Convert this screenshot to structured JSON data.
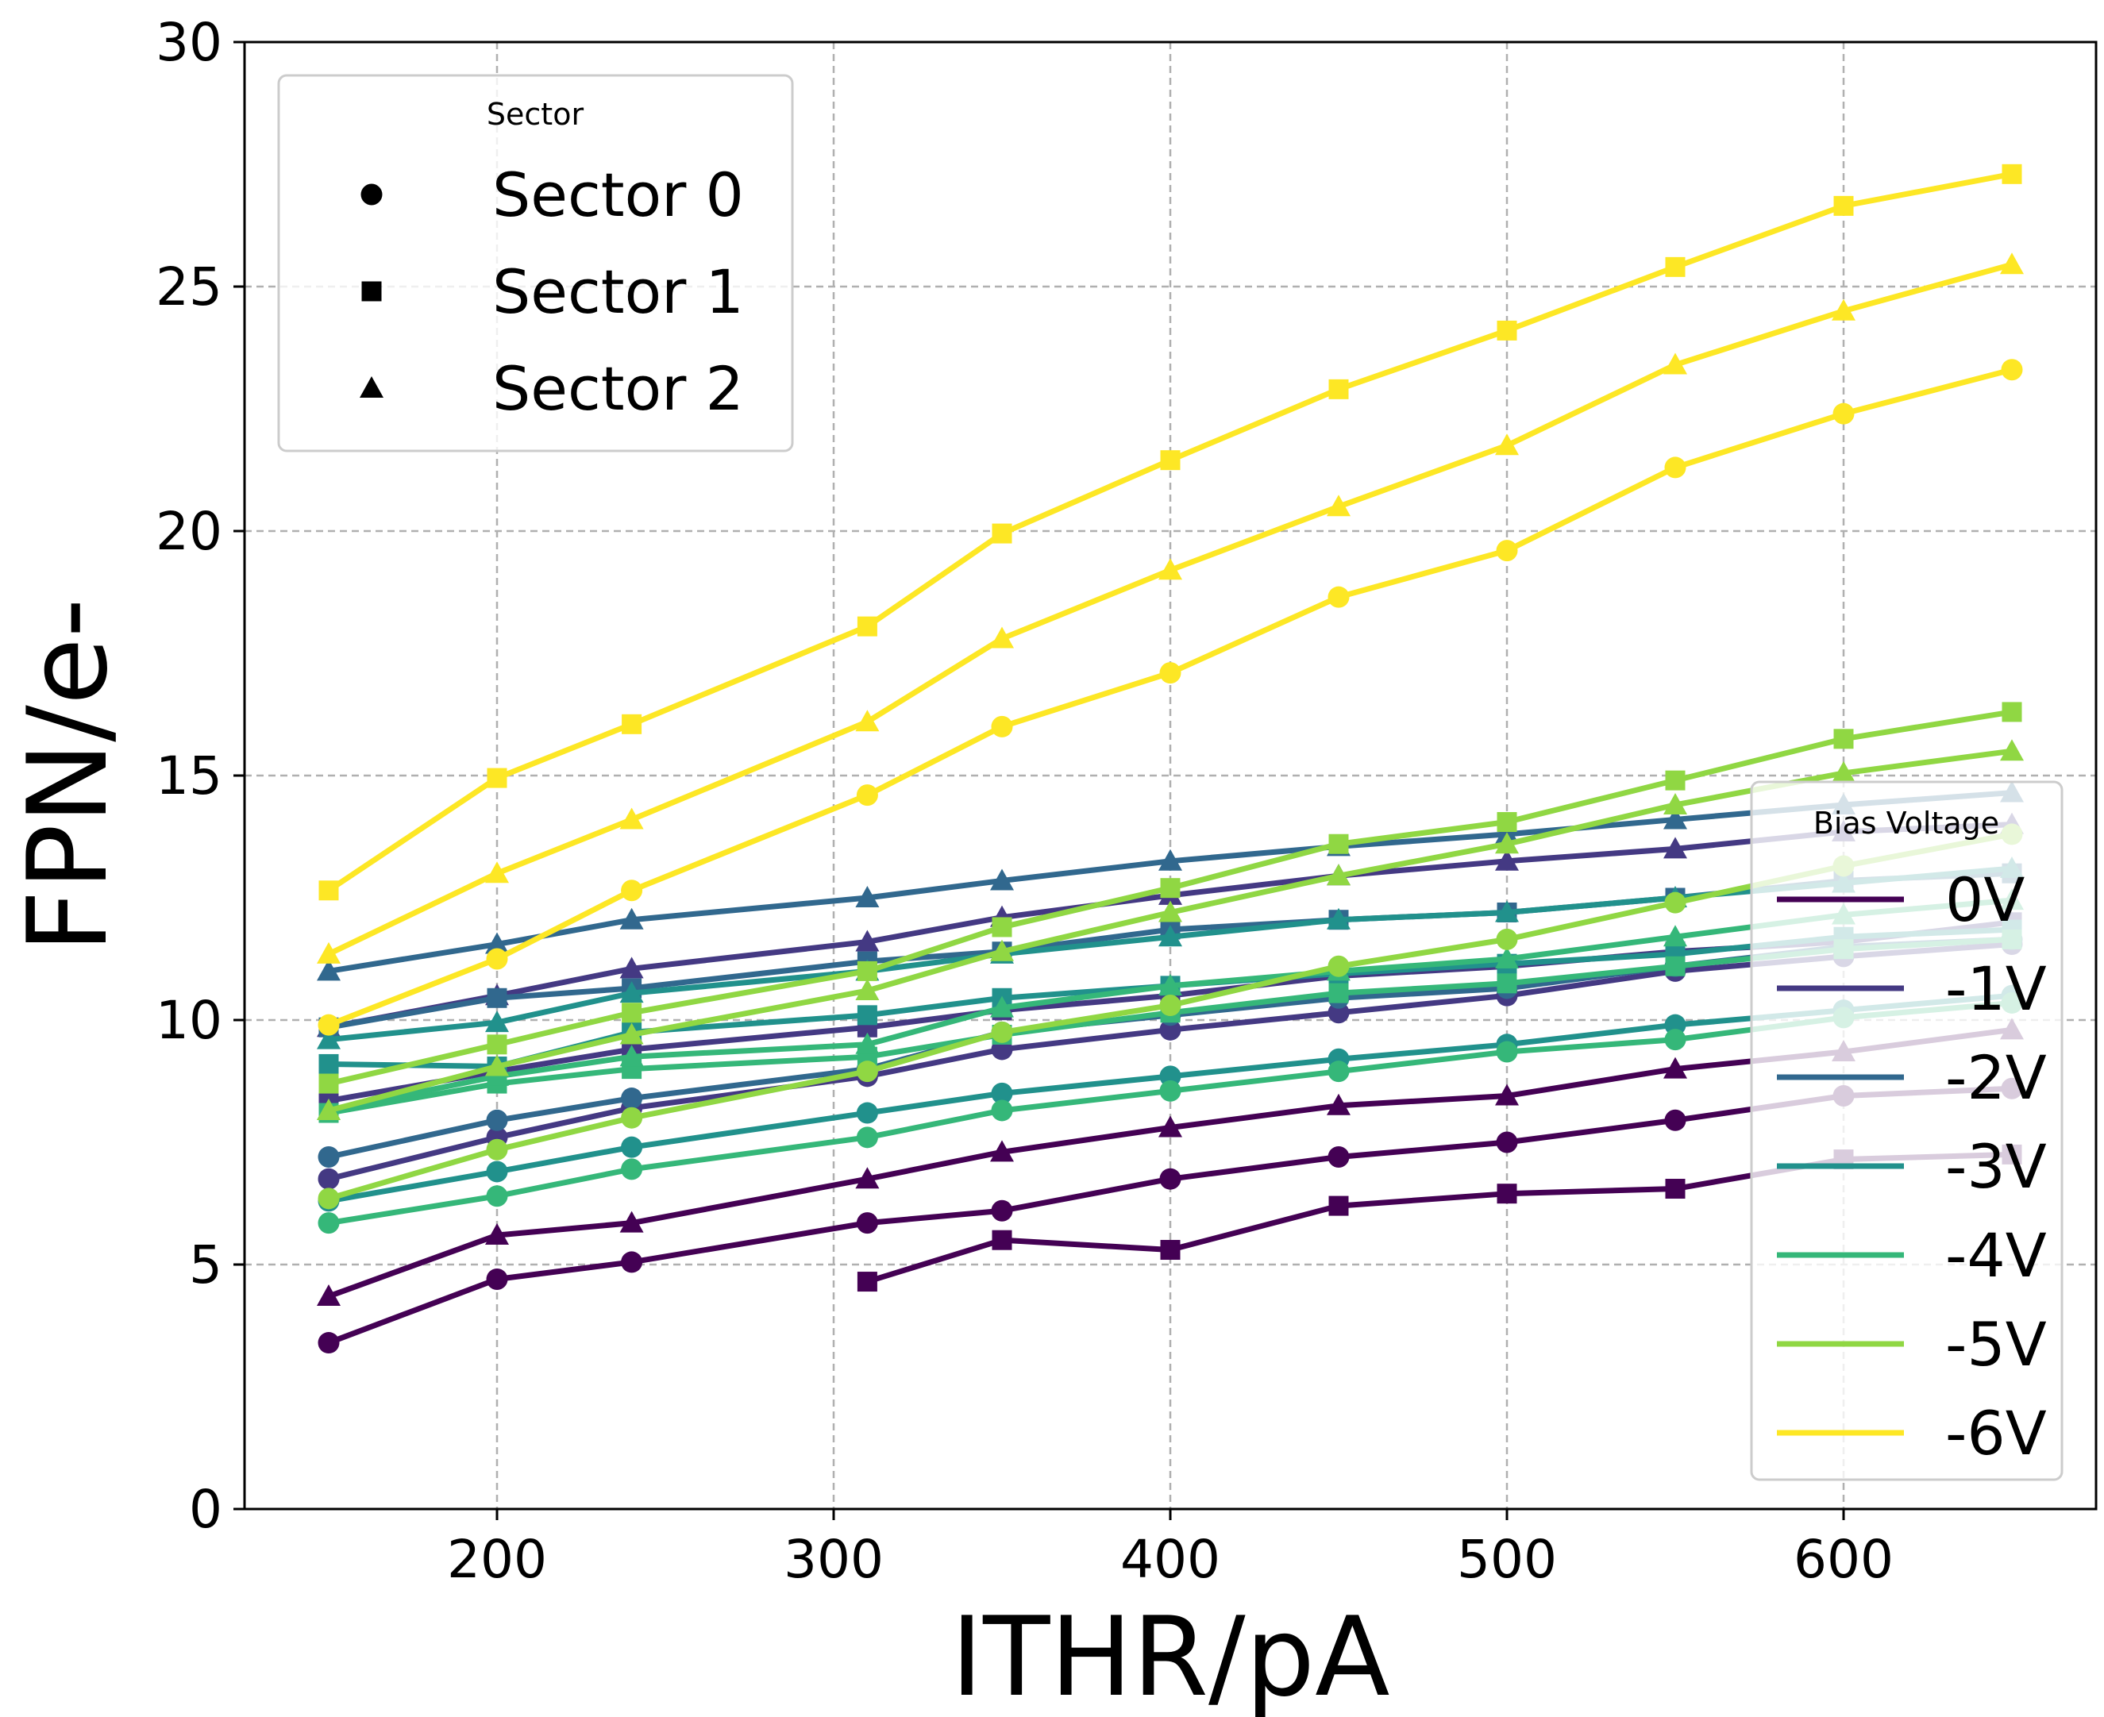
{
  "chart_data": {
    "type": "line",
    "xlabel": "ITHR/pA",
    "ylabel": "FPN/e-",
    "xlim": [
      125,
      675
    ],
    "ylim": [
      0,
      30
    ],
    "x_ticks": [
      200,
      300,
      400,
      500,
      600
    ],
    "y_ticks": [
      0,
      5,
      10,
      15,
      20,
      25,
      30
    ],
    "grid": true,
    "x": [
      150,
      200,
      240,
      310,
      350,
      400,
      450,
      500,
      550,
      600,
      650
    ],
    "marker_legend": {
      "title": "Sector",
      "placement": "upper-left",
      "entries": [
        {
          "label": "Sector 0",
          "marker": "circle"
        },
        {
          "label": "Sector 1",
          "marker": "square"
        },
        {
          "label": "Sector 2",
          "marker": "triangle"
        }
      ]
    },
    "color_legend": {
      "title": "Bias Voltage",
      "placement": "lower-right",
      "entries": [
        {
          "label": "0V",
          "color": "#440154"
        },
        {
          "label": "-1V",
          "color": "#443983"
        },
        {
          "label": "-2V",
          "color": "#31688e"
        },
        {
          "label": "-3V",
          "color": "#21918c"
        },
        {
          "label": "-4V",
          "color": "#35b779"
        },
        {
          "label": "-5V",
          "color": "#90d743"
        },
        {
          "label": "-6V",
          "color": "#fde725"
        }
      ]
    },
    "series": [
      {
        "bias": "0V",
        "sector": "Sector 0",
        "color": "#440154",
        "marker": "circle",
        "values": [
          3.4,
          4.7,
          5.05,
          5.85,
          6.1,
          6.75,
          7.2,
          7.5,
          7.95,
          8.45,
          8.6
        ]
      },
      {
        "bias": "0V",
        "sector": "Sector 1",
        "color": "#440154",
        "marker": "square",
        "values": [
          null,
          null,
          null,
          4.65,
          5.5,
          5.3,
          6.2,
          6.45,
          6.55,
          7.15,
          7.25
        ]
      },
      {
        "bias": "0V",
        "sector": "Sector 2",
        "color": "#440154",
        "marker": "triangle",
        "values": [
          4.35,
          5.6,
          5.85,
          6.75,
          7.3,
          7.8,
          8.25,
          8.45,
          9.0,
          9.35,
          9.8
        ]
      },
      {
        "bias": "-1V",
        "sector": "Sector 0",
        "color": "#443983",
        "marker": "circle",
        "values": [
          6.75,
          7.6,
          8.2,
          8.85,
          9.4,
          9.8,
          10.15,
          10.5,
          11.0,
          11.3,
          11.55
        ]
      },
      {
        "bias": "-1V",
        "sector": "Sector 1",
        "color": "#443983",
        "marker": "square",
        "values": [
          8.35,
          8.95,
          9.4,
          9.85,
          10.2,
          10.5,
          10.9,
          11.1,
          11.4,
          11.6,
          12.0
        ]
      },
      {
        "bias": "-1V",
        "sector": "Sector 2",
        "color": "#443983",
        "marker": "triangle",
        "values": [
          9.85,
          10.5,
          11.05,
          11.6,
          12.1,
          12.55,
          12.95,
          13.25,
          13.5,
          13.85,
          14.0
        ]
      },
      {
        "bias": "-2V",
        "sector": "Sector 0",
        "color": "#31688e",
        "marker": "circle",
        "values": [
          7.2,
          7.95,
          8.4,
          9.0,
          9.75,
          10.1,
          10.45,
          10.65,
          11.1,
          11.5,
          11.65
        ]
      },
      {
        "bias": "-2V",
        "sector": "Sector 1",
        "color": "#31688e",
        "marker": "square",
        "values": [
          9.85,
          10.45,
          10.65,
          11.2,
          11.4,
          11.85,
          12.05,
          12.2,
          12.5,
          12.85,
          13.0
        ]
      },
      {
        "bias": "-2V",
        "sector": "Sector 2",
        "color": "#31688e",
        "marker": "triangle",
        "values": [
          11.0,
          11.55,
          12.05,
          12.5,
          12.85,
          13.25,
          13.55,
          13.8,
          14.1,
          14.4,
          14.65
        ]
      },
      {
        "bias": "-3V",
        "sector": "Sector 0",
        "color": "#21918c",
        "marker": "circle",
        "values": [
          6.3,
          6.9,
          7.4,
          8.1,
          8.5,
          8.85,
          9.2,
          9.5,
          9.9,
          10.2,
          10.5
        ]
      },
      {
        "bias": "-3V",
        "sector": "Sector 1",
        "color": "#21918c",
        "marker": "square",
        "values": [
          9.1,
          9.05,
          9.75,
          10.1,
          10.45,
          10.7,
          10.95,
          11.15,
          11.35,
          11.7,
          11.85
        ]
      },
      {
        "bias": "-3V",
        "sector": "Sector 2",
        "color": "#21918c",
        "marker": "triangle",
        "values": [
          9.6,
          9.95,
          10.55,
          11.0,
          11.35,
          11.7,
          12.05,
          12.2,
          12.5,
          12.8,
          13.1
        ]
      },
      {
        "bias": "-4V",
        "sector": "Sector 0",
        "color": "#35b779",
        "marker": "circle",
        "values": [
          5.85,
          6.4,
          6.95,
          7.6,
          8.15,
          8.55,
          8.95,
          9.35,
          9.6,
          10.05,
          10.35
        ]
      },
      {
        "bias": "-4V",
        "sector": "Sector 1",
        "color": "#35b779",
        "marker": "square",
        "values": [
          8.1,
          8.7,
          9.0,
          9.25,
          9.7,
          10.15,
          10.55,
          10.75,
          11.1,
          11.45,
          11.65
        ]
      },
      {
        "bias": "-4V",
        "sector": "Sector 2",
        "color": "#35b779",
        "marker": "triangle",
        "values": [
          8.15,
          8.85,
          9.25,
          9.5,
          10.25,
          10.7,
          11.0,
          11.25,
          11.7,
          12.15,
          12.45
        ]
      },
      {
        "bias": "-5V",
        "sector": "Sector 0",
        "color": "#90d743",
        "marker": "circle",
        "values": [
          6.35,
          7.35,
          8.0,
          8.95,
          9.75,
          10.3,
          11.1,
          11.65,
          12.4,
          13.15,
          13.8
        ]
      },
      {
        "bias": "-5V",
        "sector": "Sector 1",
        "color": "#90d743",
        "marker": "square",
        "values": [
          8.7,
          9.5,
          10.15,
          11.0,
          11.9,
          12.7,
          13.6,
          14.05,
          14.9,
          15.75,
          16.3
        ]
      },
      {
        "bias": "-5V",
        "sector": "Sector 2",
        "color": "#90d743",
        "marker": "triangle",
        "values": [
          8.15,
          9.05,
          9.7,
          10.6,
          11.4,
          12.2,
          12.95,
          13.6,
          14.4,
          15.05,
          15.5
        ]
      },
      {
        "bias": "-6V",
        "sector": "Sector 0",
        "color": "#fde725",
        "marker": "circle",
        "values": [
          9.9,
          11.25,
          12.65,
          14.6,
          16.0,
          17.1,
          18.65,
          19.6,
          21.3,
          22.4,
          23.3
        ]
      },
      {
        "bias": "-6V",
        "sector": "Sector 1",
        "color": "#fde725",
        "marker": "square",
        "values": [
          12.65,
          14.95,
          16.05,
          18.05,
          19.95,
          21.45,
          22.9,
          24.1,
          25.4,
          26.65,
          27.3
        ]
      },
      {
        "bias": "-6V",
        "sector": "Sector 2",
        "color": "#fde725",
        "marker": "triangle",
        "values": [
          11.35,
          13.0,
          14.1,
          16.1,
          17.8,
          19.2,
          20.5,
          21.75,
          23.4,
          24.5,
          25.45
        ]
      }
    ]
  }
}
